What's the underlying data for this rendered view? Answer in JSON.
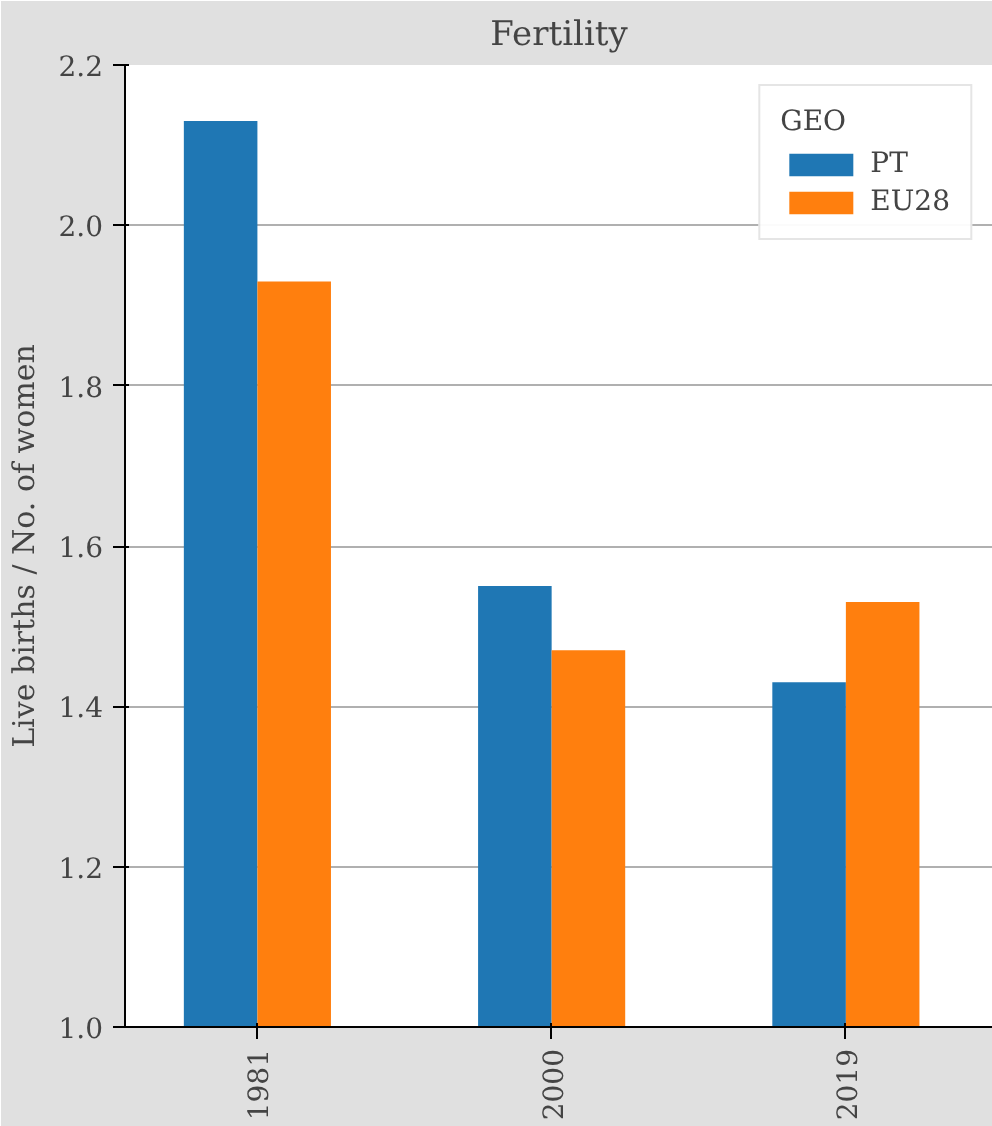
{
  "chart_data": {
    "type": "bar",
    "title": "Fertility",
    "ylabel": "Live births / No. of women",
    "legend_title": "GEO",
    "categories": [
      "1981",
      "2000",
      "2019"
    ],
    "series": [
      {
        "name": "PT",
        "color": "#1f77b4",
        "values": [
          2.13,
          1.55,
          1.43
        ]
      },
      {
        "name": "EU28",
        "color": "#ff7f0e",
        "values": [
          1.93,
          1.47,
          1.53
        ]
      }
    ],
    "ylim": [
      1.0,
      2.2
    ],
    "yticks": [
      {
        "value": 1.0,
        "label": "1.0"
      },
      {
        "value": 1.2,
        "label": "1.2"
      },
      {
        "value": 1.4,
        "label": "1.4"
      },
      {
        "value": 1.6,
        "label": "1.6"
      },
      {
        "value": 1.8,
        "label": "1.8"
      },
      {
        "value": 2.0,
        "label": "2.0"
      },
      {
        "value": 2.2,
        "label": "2.2"
      }
    ],
    "grid": "y",
    "legend": "top right"
  }
}
